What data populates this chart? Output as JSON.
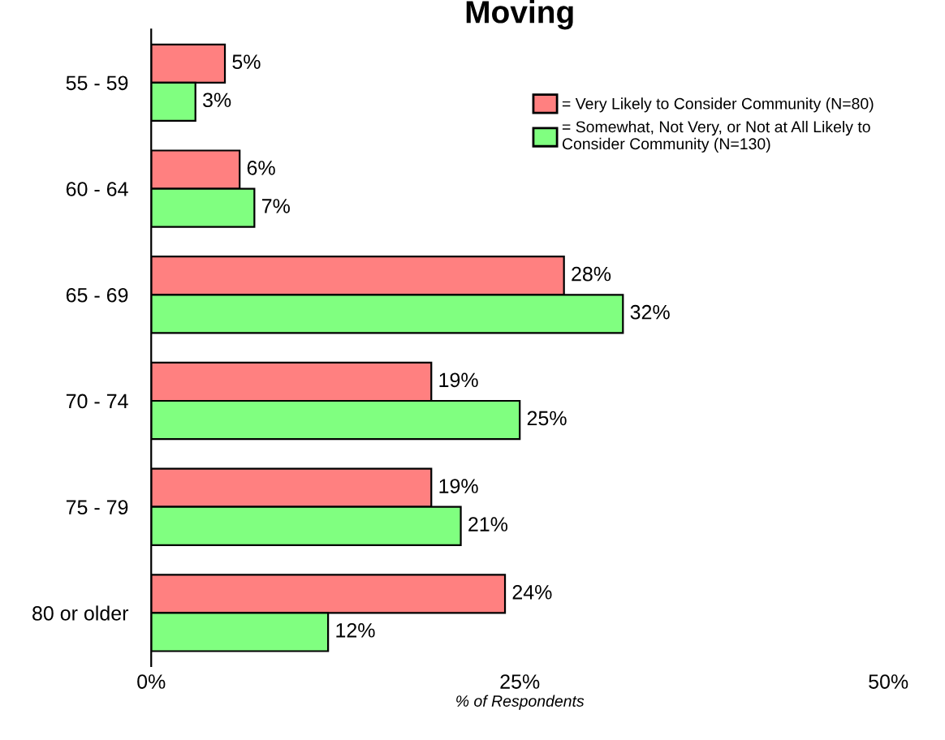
{
  "chart_data": {
    "type": "bar",
    "orientation": "horizontal",
    "title": "Moving",
    "xlabel": "% of Respondents",
    "categories": [
      "55 - 59",
      "60 - 64",
      "65 - 69",
      "70 - 74",
      "75 - 79",
      "80 or older"
    ],
    "series": [
      {
        "name": "= Very Likely to Consider Community (N=80)",
        "color": "#ff8080",
        "values": [
          5,
          6,
          28,
          19,
          19,
          24
        ],
        "value_labels": [
          "5%",
          "6%",
          "28%",
          "19%",
          "19%",
          "24%"
        ]
      },
      {
        "name": "= Somewhat, Not Very, or Not at All Likely to Consider Community (N=130)",
        "color": "#80ff80",
        "values": [
          3,
          7,
          32,
          25,
          21,
          12
        ],
        "value_labels": [
          "3%",
          "7%",
          "32%",
          "25%",
          "21%",
          "12%"
        ]
      }
    ],
    "xlim": [
      0,
      50
    ],
    "xticks": [
      {
        "value": 0,
        "label": "0%"
      },
      {
        "value": 25,
        "label": "25%"
      },
      {
        "value": 50,
        "label": "50%"
      }
    ],
    "grid": false,
    "legend": "top right"
  }
}
